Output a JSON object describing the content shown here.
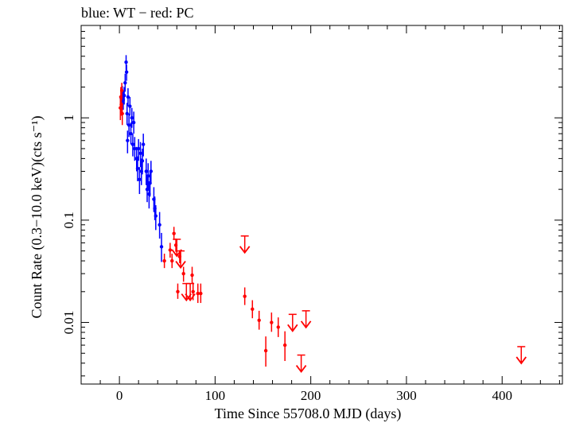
{
  "chart_data": {
    "type": "scatter",
    "title": "blue: WT − red: PC",
    "xlabel": "Time Since 55708.0 MJD (days)",
    "ylabel": "Count Rate (0.3−10.0 keV)(cts s⁻¹)",
    "xlim": [
      -40,
      463
    ],
    "ylim": [
      0.0025,
      8
    ],
    "yscale": "log",
    "x_ticks": [
      0,
      100,
      200,
      300,
      400
    ],
    "x_tick_labels": [
      "0",
      "100",
      "200",
      "300",
      "400"
    ],
    "y_ticks": [
      0.01,
      0.1,
      1
    ],
    "y_tick_labels": [
      "0.01",
      "0.1",
      "1"
    ],
    "colors": {
      "WT": "#0000ff",
      "PC": "#ff0000"
    },
    "series": [
      {
        "name": "WT",
        "color": "#0000ff",
        "points": [
          {
            "x": 2,
            "y": 1.55,
            "ylo": 1.25,
            "yhi": 1.9
          },
          {
            "x": 3,
            "y": 1.7,
            "ylo": 1.4,
            "yhi": 2.05
          },
          {
            "x": 4,
            "y": 1.5,
            "ylo": 1.2,
            "yhi": 1.85
          },
          {
            "x": 5,
            "y": 1.65,
            "ylo": 1.35,
            "yhi": 2.0
          },
          {
            "x": 6,
            "y": 2.2,
            "ylo": 1.8,
            "yhi": 2.7
          },
          {
            "x": 7,
            "y": 3.5,
            "ylo": 2.9,
            "yhi": 4.1
          },
          {
            "x": 7.5,
            "y": 2.8,
            "ylo": 2.3,
            "yhi": 3.3
          },
          {
            "x": 8,
            "y": 1.1,
            "ylo": 0.85,
            "yhi": 1.4
          },
          {
            "x": 8.5,
            "y": 0.6,
            "ylo": 0.45,
            "yhi": 0.75
          },
          {
            "x": 9,
            "y": 1.6,
            "ylo": 1.3,
            "yhi": 1.95
          },
          {
            "x": 10,
            "y": 0.85,
            "ylo": 0.65,
            "yhi": 1.1
          },
          {
            "x": 11,
            "y": 1.3,
            "ylo": 1.05,
            "yhi": 1.6
          },
          {
            "x": 12,
            "y": 0.7,
            "ylo": 0.55,
            "yhi": 0.9
          },
          {
            "x": 13,
            "y": 1.0,
            "ylo": 0.8,
            "yhi": 1.25
          },
          {
            "x": 14,
            "y": 0.55,
            "ylo": 0.42,
            "yhi": 0.7
          },
          {
            "x": 15,
            "y": 0.9,
            "ylo": 0.7,
            "yhi": 1.15
          },
          {
            "x": 16,
            "y": 0.5,
            "ylo": 0.38,
            "yhi": 0.65
          },
          {
            "x": 18,
            "y": 0.4,
            "ylo": 0.3,
            "yhi": 0.52
          },
          {
            "x": 19,
            "y": 0.32,
            "ylo": 0.24,
            "yhi": 0.42
          },
          {
            "x": 20,
            "y": 0.5,
            "ylo": 0.38,
            "yhi": 0.62
          },
          {
            "x": 21,
            "y": 0.25,
            "ylo": 0.18,
            "yhi": 0.33
          },
          {
            "x": 22,
            "y": 0.45,
            "ylo": 0.33,
            "yhi": 0.58
          },
          {
            "x": 23,
            "y": 0.3,
            "ylo": 0.22,
            "yhi": 0.4
          },
          {
            "x": 24,
            "y": 0.38,
            "ylo": 0.28,
            "yhi": 0.5
          },
          {
            "x": 25,
            "y": 0.55,
            "ylo": 0.42,
            "yhi": 0.7
          },
          {
            "x": 28,
            "y": 0.3,
            "ylo": 0.22,
            "yhi": 0.4
          },
          {
            "x": 29,
            "y": 0.2,
            "ylo": 0.15,
            "yhi": 0.27
          },
          {
            "x": 30,
            "y": 0.27,
            "ylo": 0.2,
            "yhi": 0.36
          },
          {
            "x": 31,
            "y": 0.18,
            "ylo": 0.13,
            "yhi": 0.24
          },
          {
            "x": 32,
            "y": 0.23,
            "ylo": 0.17,
            "yhi": 0.3
          },
          {
            "x": 33,
            "y": 0.3,
            "ylo": 0.23,
            "yhi": 0.38
          },
          {
            "x": 36,
            "y": 0.16,
            "ylo": 0.12,
            "yhi": 0.21
          },
          {
            "x": 37,
            "y": 0.13,
            "ylo": 0.1,
            "yhi": 0.17
          },
          {
            "x": 38,
            "y": 0.11,
            "ylo": 0.08,
            "yhi": 0.14
          },
          {
            "x": 42,
            "y": 0.09,
            "ylo": 0.066,
            "yhi": 0.12
          },
          {
            "x": 44,
            "y": 0.055,
            "ylo": 0.039,
            "yhi": 0.075
          }
        ]
      },
      {
        "name": "PC",
        "color": "#ff0000",
        "points": [
          {
            "x": 1,
            "y": 1.25,
            "ylo": 0.95,
            "yhi": 1.6
          },
          {
            "x": 1.5,
            "y": 1.6,
            "ylo": 1.25,
            "yhi": 2.0
          },
          {
            "x": 2,
            "y": 1.35,
            "ylo": 1.05,
            "yhi": 1.7
          },
          {
            "x": 2.5,
            "y": 1.85,
            "ylo": 1.5,
            "yhi": 2.2
          },
          {
            "x": 3,
            "y": 1.1,
            "ylo": 0.85,
            "yhi": 1.4
          },
          {
            "x": 47,
            "y": 0.04,
            "ylo": 0.034,
            "yhi": 0.047
          },
          {
            "x": 53,
            "y": 0.051,
            "ylo": 0.043,
            "yhi": 0.06
          },
          {
            "x": 55,
            "y": 0.04,
            "ylo": 0.034,
            "yhi": 0.047
          },
          {
            "x": 57,
            "y": 0.074,
            "ylo": 0.064,
            "yhi": 0.086
          },
          {
            "x": 59,
            "y": 0.057,
            "ylo": 0.049,
            "yhi": 0.066
          },
          {
            "x": 61,
            "y": 0.02,
            "ylo": 0.017,
            "yhi": 0.024
          },
          {
            "x": 63,
            "y": 0.044,
            "ylo": 0.038,
            "yhi": 0.051
          },
          {
            "x": 67,
            "y": 0.03,
            "ylo": 0.025,
            "yhi": 0.035
          },
          {
            "x": 76,
            "y": 0.029,
            "ylo": 0.024,
            "yhi": 0.035
          },
          {
            "x": 77,
            "y": 0.02,
            "ylo": 0.0165,
            "yhi": 0.0245
          },
          {
            "x": 82,
            "y": 0.0192,
            "ylo": 0.0155,
            "yhi": 0.024
          },
          {
            "x": 85,
            "y": 0.0192,
            "ylo": 0.0155,
            "yhi": 0.024
          },
          {
            "x": 131,
            "y": 0.018,
            "ylo": 0.0148,
            "yhi": 0.022
          },
          {
            "x": 139,
            "y": 0.0135,
            "ylo": 0.011,
            "yhi": 0.0165
          },
          {
            "x": 146,
            "y": 0.0105,
            "ylo": 0.0085,
            "yhi": 0.013
          },
          {
            "x": 153,
            "y": 0.0053,
            "ylo": 0.0037,
            "yhi": 0.0073
          },
          {
            "x": 159,
            "y": 0.01,
            "ylo": 0.0081,
            "yhi": 0.0125
          },
          {
            "x": 166,
            "y": 0.009,
            "ylo": 0.0072,
            "yhi": 0.0112
          },
          {
            "x": 173,
            "y": 0.006,
            "ylo": 0.0042,
            "yhi": 0.0082
          }
        ],
        "upper_limits": [
          {
            "x": 60,
            "y": 0.065
          },
          {
            "x": 64,
            "y": 0.05
          },
          {
            "x": 70,
            "y": 0.024
          },
          {
            "x": 74,
            "y": 0.024
          },
          {
            "x": 131,
            "y": 0.07
          },
          {
            "x": 181,
            "y": 0.012
          },
          {
            "x": 190,
            "y": 0.0048
          },
          {
            "x": 195,
            "y": 0.013
          },
          {
            "x": 420,
            "y": 0.0058
          }
        ]
      }
    ]
  }
}
